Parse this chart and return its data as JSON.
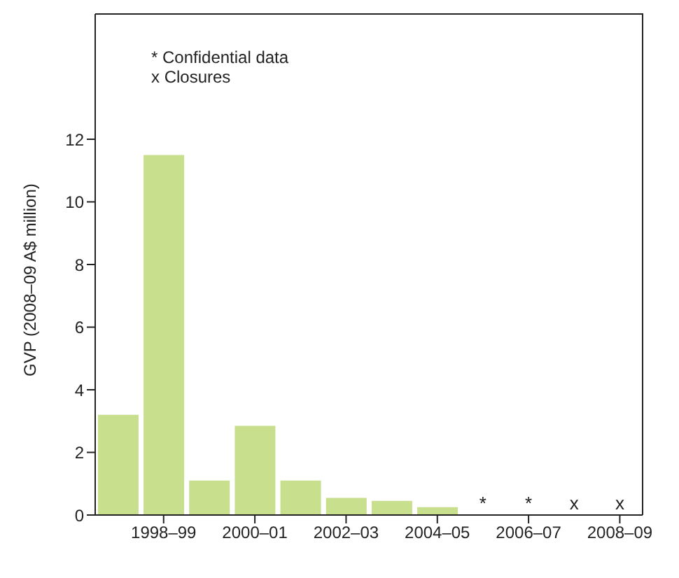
{
  "chart_data": {
    "type": "bar",
    "ylabel": "GVP (2008–09 A$ million)",
    "categories": [
      null,
      "1998–99",
      null,
      "2000–01",
      null,
      "2002–03",
      null,
      "2004–05",
      null,
      "2006–07",
      null,
      "2008–09"
    ],
    "values": [
      3.2,
      11.5,
      1.1,
      2.85,
      1.1,
      0.55,
      0.45,
      0.25,
      null,
      null,
      null,
      null
    ],
    "value_labels": [
      null,
      null,
      null,
      null,
      null,
      null,
      null,
      null,
      "*",
      "*",
      "x",
      "x"
    ],
    "color": "#c8df8e",
    "ylim": [
      0,
      16
    ],
    "yticks": [
      0,
      2,
      4,
      6,
      8,
      10,
      12
    ],
    "annotations": [
      "* Confidential data",
      "x Closures"
    ]
  }
}
